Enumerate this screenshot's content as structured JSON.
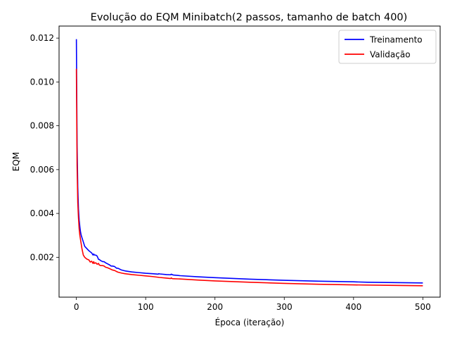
{
  "chart_data": {
    "type": "line",
    "title": "Evolução do EQM Minibatch(2 passos, tamanho de batch 400)",
    "xlabel": "Época (iteração)",
    "ylabel": "EQM",
    "xlim": [
      -25,
      525
    ],
    "ylim": [
      0.00018,
      0.01255
    ],
    "xticks": [
      0,
      100,
      200,
      300,
      400,
      500
    ],
    "yticks": [
      0.002,
      0.004,
      0.006,
      0.008,
      0.01,
      0.012
    ],
    "ytick_labels": [
      "0.002",
      "0.004",
      "0.006",
      "0.008",
      "0.010",
      "0.012"
    ],
    "grid": false,
    "legend_position": "top-right",
    "series": [
      {
        "name": "Treinamento",
        "color": "#0000ff",
        "x": [
          0,
          1,
          2,
          3,
          4,
          5,
          6,
          7,
          8,
          10,
          12,
          15,
          18,
          20,
          22,
          24,
          25,
          26,
          28,
          30,
          32,
          33,
          35,
          38,
          40,
          42,
          45,
          48,
          50,
          52,
          55,
          58,
          60,
          65,
          70,
          80,
          90,
          100,
          110,
          118,
          119,
          120,
          130,
          136,
          137,
          138,
          140,
          150,
          175,
          200,
          250,
          300,
          350,
          400,
          420,
          450,
          500
        ],
        "values": [
          0.01195,
          0.0072,
          0.0052,
          0.0042,
          0.0037,
          0.0034,
          0.00315,
          0.003,
          0.0029,
          0.0027,
          0.0025,
          0.0024,
          0.0023,
          0.00225,
          0.0022,
          0.0021,
          0.00215,
          0.0021,
          0.0021,
          0.00205,
          0.0019,
          0.0019,
          0.00185,
          0.0018,
          0.0018,
          0.00175,
          0.0017,
          0.00165,
          0.0016,
          0.0016,
          0.00158,
          0.0015,
          0.0015,
          0.00142,
          0.00138,
          0.00133,
          0.0013,
          0.00127,
          0.00125,
          0.00123,
          0.00125,
          0.00124,
          0.00121,
          0.0012,
          0.00123,
          0.00121,
          0.00119,
          0.00116,
          0.00111,
          0.00107,
          0.001,
          0.00095,
          0.00091,
          0.00088,
          0.00086,
          0.00085,
          0.00083
        ]
      },
      {
        "name": "Validação",
        "color": "#ff0000",
        "x": [
          0,
          1,
          2,
          3,
          4,
          5,
          6,
          7,
          8,
          10,
          12,
          15,
          18,
          20,
          22,
          24,
          25,
          26,
          28,
          30,
          32,
          33,
          35,
          38,
          40,
          42,
          45,
          48,
          50,
          52,
          55,
          58,
          60,
          65,
          70,
          80,
          90,
          100,
          110,
          120,
          130,
          136,
          137,
          138,
          140,
          150,
          175,
          200,
          250,
          300,
          350,
          400,
          450,
          500
        ],
        "values": [
          0.0106,
          0.0062,
          0.0045,
          0.0038,
          0.0033,
          0.003,
          0.0028,
          0.0026,
          0.0024,
          0.0021,
          0.002,
          0.00192,
          0.00188,
          0.00178,
          0.00182,
          0.00172,
          0.0018,
          0.00172,
          0.00175,
          0.00168,
          0.00172,
          0.00165,
          0.00162,
          0.00162,
          0.0016,
          0.00155,
          0.00152,
          0.00148,
          0.00145,
          0.00142,
          0.0014,
          0.00135,
          0.00132,
          0.00128,
          0.00125,
          0.00121,
          0.00118,
          0.00115,
          0.00112,
          0.00108,
          0.00105,
          0.00103,
          0.00106,
          0.00103,
          0.00102,
          0.00101,
          0.00096,
          0.00092,
          0.00086,
          0.00081,
          0.00077,
          0.00074,
          0.00072,
          0.0007
        ]
      }
    ]
  }
}
